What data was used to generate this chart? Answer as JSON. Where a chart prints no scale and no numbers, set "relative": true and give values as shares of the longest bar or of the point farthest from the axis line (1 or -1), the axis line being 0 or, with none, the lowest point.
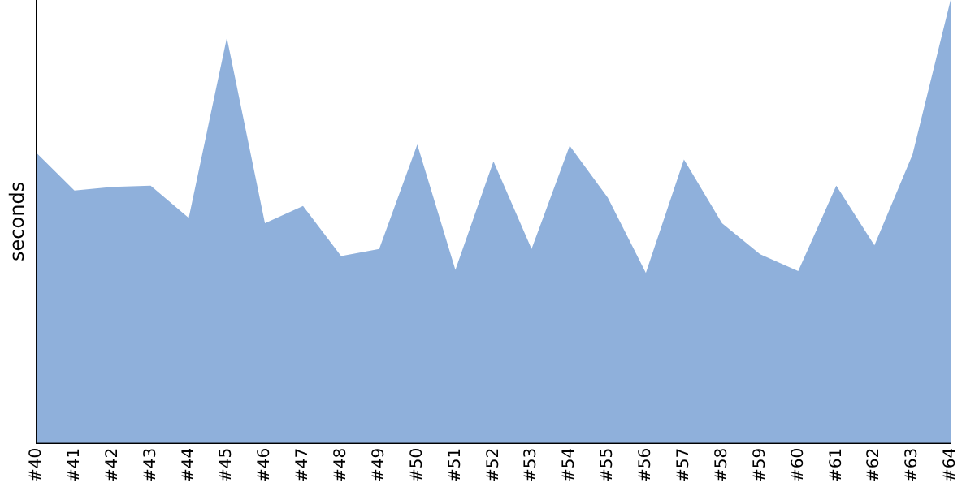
{
  "chart_data": {
    "type": "area",
    "ylabel": "seconds",
    "relative": true,
    "legend": false,
    "grid": false,
    "marker": "none",
    "categories": [
      "#40",
      "#41",
      "#42",
      "#43",
      "#44",
      "#45",
      "#46",
      "#47",
      "#48",
      "#49",
      "#50",
      "#51",
      "#52",
      "#53",
      "#54",
      "#55",
      "#56",
      "#57",
      "#58",
      "#59",
      "#60",
      "#61",
      "#62",
      "#63",
      "#64"
    ],
    "series": [
      {
        "color": "#8fb0db",
        "values": [
          0.655,
          0.57,
          0.578,
          0.581,
          0.508,
          0.915,
          0.496,
          0.535,
          0.422,
          0.438,
          0.674,
          0.391,
          0.636,
          0.438,
          0.671,
          0.554,
          0.384,
          0.64,
          0.496,
          0.426,
          0.388,
          0.581,
          0.446,
          0.651,
          1
        ]
      }
    ]
  }
}
